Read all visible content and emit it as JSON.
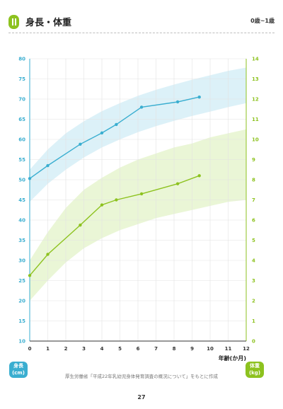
{
  "header": {
    "title": "身長・体重",
    "age_range": "0歳~1歳"
  },
  "axis_units": {
    "left_line1": "身長",
    "left_line2": "(cm)",
    "right_line1": "体重",
    "right_line2": "(kg)"
  },
  "source": "厚生労働省「平成22年乳幼児身体発育調査の概況について」をもとに作成",
  "page_number": "27",
  "colors": {
    "height": "#3aaed0",
    "weight": "#8dc21f",
    "height_band": "#d6eef7",
    "weight_band": "#e6f4cf"
  },
  "chart_data": {
    "type": "line",
    "xlabel": "年齢(か月)",
    "xlim": [
      0,
      12
    ],
    "x_ticks": [
      0,
      1,
      2,
      3,
      4,
      5,
      6,
      7,
      8,
      9,
      10,
      11,
      12
    ],
    "ylim_left": [
      10,
      80
    ],
    "y_ticks_left": [
      10,
      15,
      20,
      25,
      30,
      35,
      40,
      45,
      50,
      55,
      60,
      65,
      70,
      75,
      80
    ],
    "ylim_right": [
      0,
      14
    ],
    "y_ticks_right": [
      0,
      1,
      2,
      3,
      4,
      5,
      6,
      7,
      8,
      9,
      10,
      11,
      12,
      13,
      14
    ],
    "grid": true,
    "series": [
      {
        "axis": "left",
        "color": "#3aaed0",
        "x": [
          0,
          1,
          2.8,
          4,
          4.8,
          6.2,
          8.2,
          9.4
        ],
        "y": [
          50.3,
          53.5,
          58.8,
          61.6,
          63.7,
          68.0,
          69.3,
          70.5
        ],
        "band_x": [
          0,
          1,
          2,
          3,
          4,
          5,
          6,
          7,
          8,
          9,
          10,
          11,
          12
        ],
        "band_low": [
          44.5,
          49.0,
          52.5,
          55.5,
          58.0,
          60.0,
          61.8,
          63.3,
          64.6,
          65.8,
          66.9,
          68.0,
          69.0
        ],
        "band_high": [
          52.5,
          57.5,
          61.5,
          64.5,
          67.0,
          69.0,
          70.8,
          72.3,
          73.6,
          74.8,
          75.9,
          77.0,
          77.8
        ]
      },
      {
        "axis": "right",
        "color": "#8dc21f",
        "x": [
          0,
          1,
          2.8,
          4,
          4.8,
          6.2,
          8.2,
          9.4
        ],
        "y": [
          3.25,
          4.3,
          5.75,
          6.75,
          7.0,
          7.3,
          7.8,
          8.2
        ],
        "band_x": [
          0,
          1,
          2,
          3,
          4,
          5,
          6,
          7,
          8,
          9,
          10,
          11,
          12
        ],
        "band_low": [
          2.0,
          3.0,
          3.9,
          4.6,
          5.1,
          5.5,
          5.8,
          6.1,
          6.3,
          6.5,
          6.7,
          6.9,
          7.0
        ],
        "band_high": [
          4.0,
          5.4,
          6.6,
          7.5,
          8.1,
          8.6,
          9.0,
          9.3,
          9.6,
          9.8,
          10.1,
          10.3,
          10.5
        ]
      }
    ]
  }
}
